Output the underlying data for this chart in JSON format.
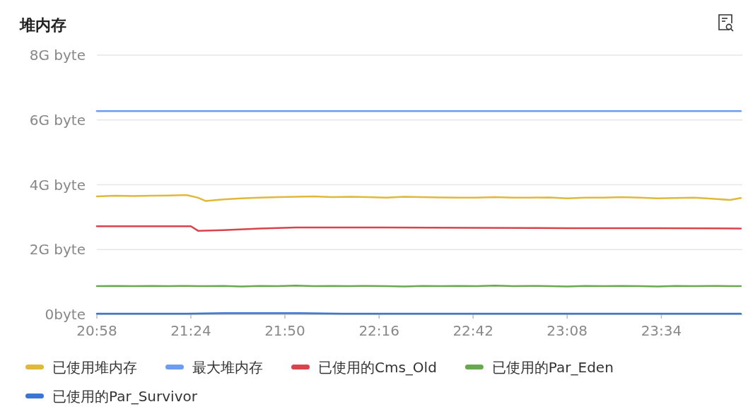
{
  "chart_data": {
    "type": "line",
    "title": "堆内存",
    "x": [
      20.967,
      21.05,
      21.133,
      21.217,
      21.3,
      21.383,
      21.433,
      21.467,
      21.55,
      21.633,
      21.717,
      21.8,
      21.883,
      21.967,
      22.05,
      22.133,
      22.217,
      22.3,
      22.383,
      22.467,
      22.55,
      22.633,
      22.717,
      22.8,
      22.883,
      22.967,
      23.05,
      23.133,
      23.217,
      23.3,
      23.383,
      23.467,
      23.55,
      23.633,
      23.717,
      23.8,
      23.883,
      23.933
    ],
    "series": [
      {
        "name": "已使用堆内存",
        "color": "#e0b93a",
        "values": [
          3.64,
          3.66,
          3.65,
          3.66,
          3.67,
          3.68,
          3.6,
          3.5,
          3.55,
          3.58,
          3.6,
          3.62,
          3.63,
          3.64,
          3.62,
          3.63,
          3.62,
          3.6,
          3.63,
          3.62,
          3.61,
          3.6,
          3.6,
          3.62,
          3.6,
          3.6,
          3.61,
          3.58,
          3.6,
          3.6,
          3.62,
          3.6,
          3.58,
          3.59,
          3.6,
          3.57,
          3.53,
          3.59
        ]
      },
      {
        "name": "最大堆内存",
        "color": "#6b9ef0",
        "x": [
          20.967,
          23.933
        ],
        "values": [
          6.27,
          6.27
        ]
      },
      {
        "name": "已使用的Cms_Old",
        "color": "#d9434b",
        "x": [
          20.967,
          21.4,
          21.433,
          21.55,
          21.717,
          21.883,
          22.3,
          22.717,
          23.133,
          23.55,
          23.933
        ],
        "values": [
          2.72,
          2.72,
          2.58,
          2.6,
          2.65,
          2.68,
          2.68,
          2.67,
          2.66,
          2.66,
          2.65
        ]
      },
      {
        "name": "已使用的Par_Eden",
        "color": "#6aa84f",
        "values": [
          0.87,
          0.88,
          0.87,
          0.88,
          0.87,
          0.88,
          0.87,
          0.87,
          0.88,
          0.86,
          0.88,
          0.87,
          0.89,
          0.87,
          0.88,
          0.87,
          0.88,
          0.87,
          0.86,
          0.88,
          0.87,
          0.88,
          0.87,
          0.89,
          0.87,
          0.88,
          0.87,
          0.86,
          0.88,
          0.87,
          0.88,
          0.87,
          0.86,
          0.88,
          0.87,
          0.88,
          0.87,
          0.87
        ]
      },
      {
        "name": "已使用的Par_Survivor",
        "color": "#3a75d6",
        "x": [
          20.967,
          21.383,
          21.55,
          21.9,
          22.1,
          23.933
        ],
        "values": [
          0.02,
          0.02,
          0.04,
          0.04,
          0.02,
          0.02
        ]
      }
    ],
    "xlim": [
      20.967,
      23.94
    ],
    "xticks": [
      {
        "value": 20.967,
        "label": "20:58"
      },
      {
        "value": 21.4,
        "label": "21:24"
      },
      {
        "value": 21.833,
        "label": "21:50"
      },
      {
        "value": 22.267,
        "label": "22:16"
      },
      {
        "value": 22.7,
        "label": "22:42"
      },
      {
        "value": 23.133,
        "label": "23:08"
      },
      {
        "value": 23.567,
        "label": "23:34"
      }
    ],
    "ylim": [
      0,
      8
    ],
    "yticks": [
      {
        "value": 0,
        "label": "0byte"
      },
      {
        "value": 2,
        "label": "2G byte"
      },
      {
        "value": 4,
        "label": "4G byte"
      },
      {
        "value": 6,
        "label": "6G byte"
      },
      {
        "value": 8,
        "label": "8G byte"
      }
    ],
    "grid": "y",
    "legend": "bottom",
    "marker": "none",
    "line_style": "solid"
  }
}
